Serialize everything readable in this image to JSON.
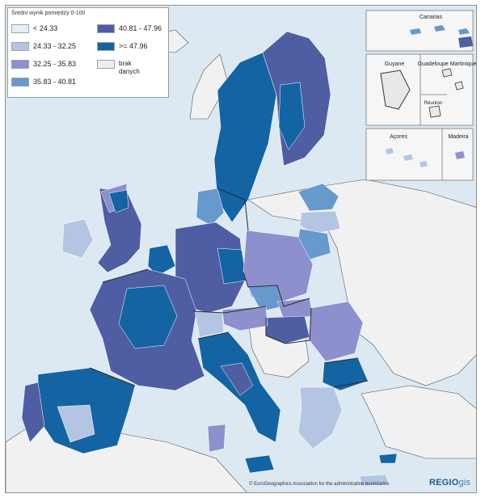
{
  "legend": {
    "title": "Średni wynik pomiędzy 0-100",
    "items": [
      {
        "label": "< 24.33",
        "color": "#e4eef7"
      },
      {
        "label": "24.33 - 32.25",
        "color": "#b4c5e3"
      },
      {
        "label": "32.25 - 35.83",
        "color": "#8e8fcd"
      },
      {
        "label": "35.83 - 40.81",
        "color": "#6699cc"
      },
      {
        "label": "40.81 - 47.96",
        "color": "#4f5ea3"
      },
      {
        "label": ">= 47.96",
        "color": "#1464a3"
      },
      {
        "label": "brak danych",
        "color": "#eceef0"
      }
    ]
  },
  "insets": {
    "canarias": "Canarias",
    "guyane": "Guyane",
    "guadeloupe_martinique": "Guadeloupe Martinique",
    "reunion": "Réunion",
    "acores": "Açores",
    "madeira": "Madeira"
  },
  "footer": {
    "copyright": "© EuroGeographics Association for the administrative boundaries",
    "logo_main": "REGIO",
    "logo_suffix": "gis"
  },
  "colors": {
    "sea": "#dce9f3",
    "non_eu_land": "#f2f2f2",
    "border": "#2a2a2a"
  }
}
